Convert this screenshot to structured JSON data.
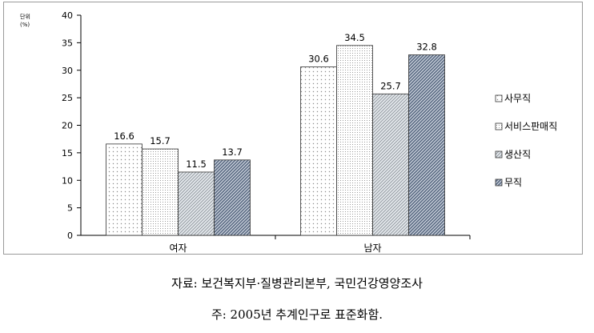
{
  "chart_data": {
    "type": "bar",
    "unit_label": "단위\n(%)",
    "categories": [
      "여자",
      "남자"
    ],
    "series": [
      {
        "name": "사무직",
        "values": [
          16.6,
          30.6
        ],
        "pattern": "dots"
      },
      {
        "name": "서비스판매직",
        "values": [
          15.7,
          34.5
        ],
        "pattern": "fine-dots"
      },
      {
        "name": "생산직",
        "values": [
          11.5,
          25.7
        ],
        "pattern": "diag-light"
      },
      {
        "name": "무직",
        "values": [
          13.7,
          32.8
        ],
        "pattern": "diag-dark"
      }
    ],
    "ylim": [
      0,
      40
    ],
    "yticks": [
      0,
      5,
      10,
      15,
      20,
      25,
      30,
      35,
      40
    ],
    "data_labels": true,
    "legend_position": "right",
    "legend_marker": "□",
    "grid": false
  },
  "notes": {
    "source": "자료: 보건복지부·질병관리본부, 국민건강영양조사",
    "footnote": "주: 2005년 추계인구로 표준화함."
  }
}
